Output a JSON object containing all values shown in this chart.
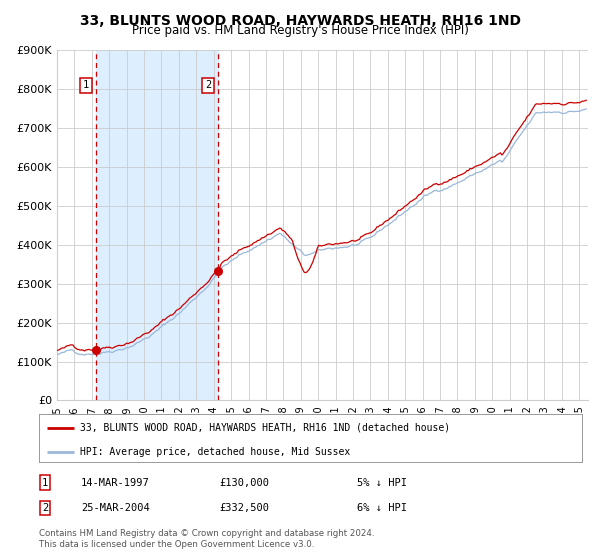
{
  "title": "33, BLUNTS WOOD ROAD, HAYWARDS HEATH, RH16 1ND",
  "subtitle": "Price paid vs. HM Land Registry's House Price Index (HPI)",
  "legend_line1": "33, BLUNTS WOOD ROAD, HAYWARDS HEATH, RH16 1ND (detached house)",
  "legend_line2": "HPI: Average price, detached house, Mid Sussex",
  "sale1_date": "14-MAR-1997",
  "sale1_price": 130000,
  "sale1_pct": "5% ↓ HPI",
  "sale2_date": "25-MAR-2004",
  "sale2_price": 332500,
  "sale2_pct": "6% ↓ HPI",
  "copyright": "Contains HM Land Registry data © Crown copyright and database right 2024.\nThis data is licensed under the Open Government Licence v3.0.",
  "xmin": 1995.0,
  "xmax": 2025.5,
  "ymin": 0,
  "ymax": 900000,
  "yticks": [
    0,
    100000,
    200000,
    300000,
    400000,
    500000,
    600000,
    700000,
    800000,
    900000
  ],
  "ytick_labels": [
    "£0",
    "£100K",
    "£200K",
    "£300K",
    "£400K",
    "£500K",
    "£600K",
    "£700K",
    "£800K",
    "£900K"
  ],
  "xticks": [
    1995,
    1996,
    1997,
    1998,
    1999,
    2000,
    2001,
    2002,
    2003,
    2004,
    2005,
    2006,
    2007,
    2008,
    2009,
    2010,
    2011,
    2012,
    2013,
    2014,
    2015,
    2016,
    2017,
    2018,
    2019,
    2020,
    2021,
    2022,
    2023,
    2024,
    2025
  ],
  "hpi_color": "#9ab8d8",
  "price_color": "#cc0000",
  "shade_color": "#ddeeff",
  "vline_color": "#cc0000",
  "grid_color": "#cccccc",
  "bg_color": "#ffffff",
  "sale1_x": 1997.22,
  "sale2_x": 2004.22
}
